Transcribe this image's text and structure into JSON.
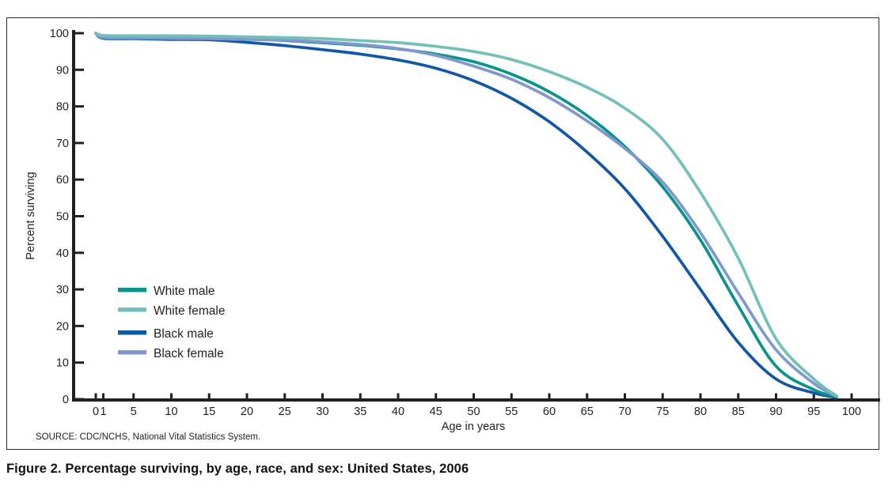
{
  "figure": {
    "caption": "Figure 2. Percentage surviving, by age, race, and sex: United States, 2006",
    "source": "SOURCE: CDC/NCHS, National Vital Statistics System.",
    "axis_color": "#231f20",
    "border_color": "#2b2b2b"
  },
  "chart_data": {
    "type": "line",
    "title": "",
    "xlabel": "Age in years",
    "ylabel": "Percent surviving",
    "xlim": [
      0,
      100
    ],
    "ylim": [
      0,
      100
    ],
    "grid": false,
    "legend_position": "inside-left",
    "x_ticks": [
      0,
      1,
      5,
      10,
      15,
      20,
      25,
      30,
      35,
      40,
      45,
      50,
      55,
      60,
      65,
      70,
      75,
      80,
      85,
      90,
      95,
      100
    ],
    "y_ticks": [
      0,
      10,
      20,
      30,
      40,
      50,
      60,
      70,
      80,
      90,
      100
    ],
    "x": [
      0,
      1,
      5,
      10,
      15,
      20,
      25,
      30,
      35,
      40,
      45,
      50,
      55,
      60,
      65,
      70,
      75,
      80,
      85,
      90,
      95,
      98
    ],
    "series": [
      {
        "name": "White male",
        "color": "#0a938a",
        "values": [
          100,
          99.2,
          99.1,
          99.0,
          98.9,
          98.5,
          98.0,
          97.4,
          96.7,
          95.7,
          94.3,
          92.2,
          88.8,
          84.0,
          77.5,
          69.0,
          58.0,
          43.5,
          25.5,
          9.0,
          2.6,
          0.6
        ]
      },
      {
        "name": "White female",
        "color": "#72c0b9",
        "values": [
          100,
          99.4,
          99.3,
          99.3,
          99.2,
          99.0,
          98.8,
          98.5,
          98.0,
          97.4,
          96.4,
          95.0,
          92.8,
          89.5,
          85.2,
          79.5,
          71.0,
          56.5,
          38.5,
          16.5,
          5.5,
          0.9
        ]
      },
      {
        "name": "Black male",
        "color": "#1058a7",
        "values": [
          100,
          98.6,
          98.5,
          98.3,
          98.2,
          97.5,
          96.6,
          95.5,
          94.3,
          92.7,
          90.4,
          87.0,
          82.2,
          75.8,
          67.5,
          57.5,
          44.5,
          30.0,
          15.5,
          5.5,
          1.7,
          0.5
        ]
      },
      {
        "name": "Black female",
        "color": "#8098ce",
        "values": [
          100,
          98.8,
          98.7,
          98.6,
          98.5,
          98.3,
          98.1,
          97.6,
          96.9,
          95.8,
          93.9,
          91.0,
          87.4,
          82.4,
          76.0,
          68.5,
          59.3,
          45.5,
          29.0,
          13.5,
          4.3,
          0.8
        ]
      }
    ]
  }
}
